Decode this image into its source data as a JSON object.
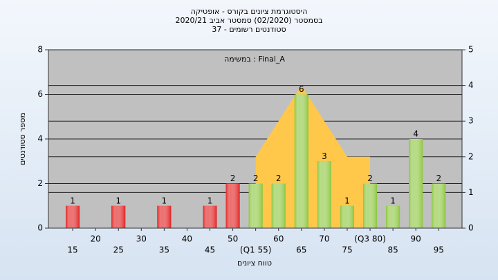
{
  "chart_data": {
    "type": "bar",
    "title_lines": [
      "היסטוגרמת ציונים בקורס - אופטיקה",
      "בסמסטר  (02/2020)  סמסטר אביב 2020/21",
      "סטודנטים רשומים - 37"
    ],
    "annotation": "Final_A : במשימה",
    "x_label": "טווח ציונים",
    "y_label": "מספר סטודנטים",
    "x": [
      15,
      25,
      35,
      45,
      50,
      55,
      60,
      65,
      70,
      75,
      80,
      85,
      90,
      95
    ],
    "values": [
      1,
      1,
      1,
      1,
      2,
      2,
      2,
      6,
      3,
      1,
      2,
      1,
      4,
      2
    ],
    "bar_colors": [
      "#e02020",
      "#e02020",
      "#e02020",
      "#e02020",
      "#e02020",
      "#8cc63f",
      "#8cc63f",
      "#8cc63f",
      "#8cc63f",
      "#8cc63f",
      "#8cc63f",
      "#8cc63f",
      "#8cc63f",
      "#8cc63f"
    ],
    "area": {
      "x": [
        55,
        65,
        75,
        80
      ],
      "values": [
        2,
        4,
        2,
        2
      ],
      "axis": "y2",
      "color": "#ffc84a"
    },
    "xlim": [
      9.7,
      100.1
    ],
    "xticks": [
      15,
      20,
      25,
      30,
      35,
      40,
      45,
      50,
      {
        "value": 55,
        "label": "(Q1 55)"
      },
      60,
      65,
      70,
      75,
      {
        "value": 80,
        "label": "(Q3 80)"
      },
      85,
      90,
      95
    ],
    "ylim": [
      0,
      8
    ],
    "yticks": [
      0,
      2,
      4,
      6,
      8
    ],
    "y2lim": [
      0,
      5
    ],
    "y2ticks": [
      0,
      1,
      2,
      3,
      4,
      5
    ],
    "grid": true
  }
}
